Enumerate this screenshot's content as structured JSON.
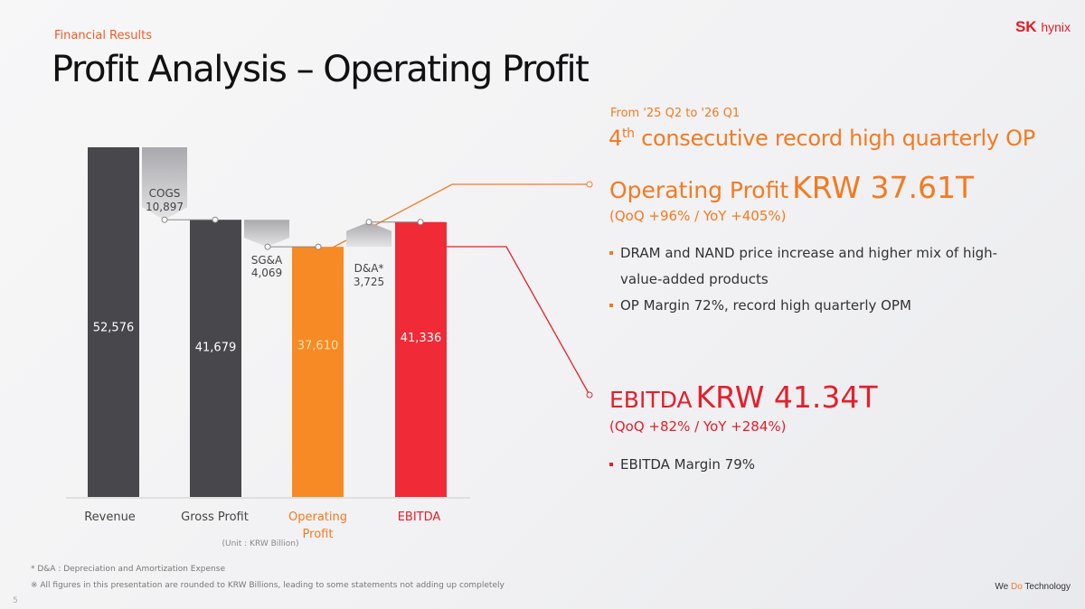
{
  "header": {
    "section": "Financial Results",
    "title": "Profit Analysis – Operating Profit",
    "logo": "SK hynix"
  },
  "chart_data": {
    "type": "bar",
    "subtype": "waterfall",
    "unit_label": "(Unit : KRW Billion)",
    "categories": [
      "Revenue",
      "Gross Profit",
      "Operating Profit",
      "EBITDA"
    ],
    "values": [
      52576,
      41679,
      37610,
      41336
    ],
    "value_labels": [
      "52,576",
      "41,679",
      "37,610",
      "41,336"
    ],
    "steps": [
      {
        "name": "COGS",
        "value": 10897,
        "label": "10,897"
      },
      {
        "name": "SG&A",
        "value": 4069,
        "label": "4,069"
      },
      {
        "name": "D&A*",
        "value": 3725,
        "label": "3,725"
      }
    ],
    "colors": {
      "Revenue": "#48484c",
      "Gross Profit": "#48484c",
      "Operating Profit": "#f78a24",
      "EBITDA": "#f02a36",
      "label_op": "#f47a20",
      "label_ebitda": "#e3202c"
    }
  },
  "highlights": {
    "period": "From '25 Q2 to '26 Q1",
    "record_ord": "4",
    "record_sup": "th",
    "record_text": " consecutive record high quarterly OP",
    "op_label": "Operating Profit",
    "op_value": "KRW 37.61T",
    "op_change": "(QoQ +96% / YoY +405%)",
    "op_bullets": [
      "DRAM and NAND price increase and higher mix of high-value-added products",
      "OP Margin 72%, record high quarterly OPM"
    ],
    "ebitda_label": "EBITDA",
    "ebitda_value": "KRW 41.34T",
    "ebitda_change": "(QoQ +82% / YoY +284%)",
    "ebitda_bullets": [
      "EBITDA Margin 79%"
    ]
  },
  "footer": {
    "note1": "* D&A : Depreciation and Amortization Expense",
    "note2": "※ All figures in this presentation are rounded to KRW Billions, leading to some statements not adding up completely",
    "page": "5",
    "slogan_a": "We ",
    "slogan_b": "Do",
    "slogan_c": " Technology"
  }
}
